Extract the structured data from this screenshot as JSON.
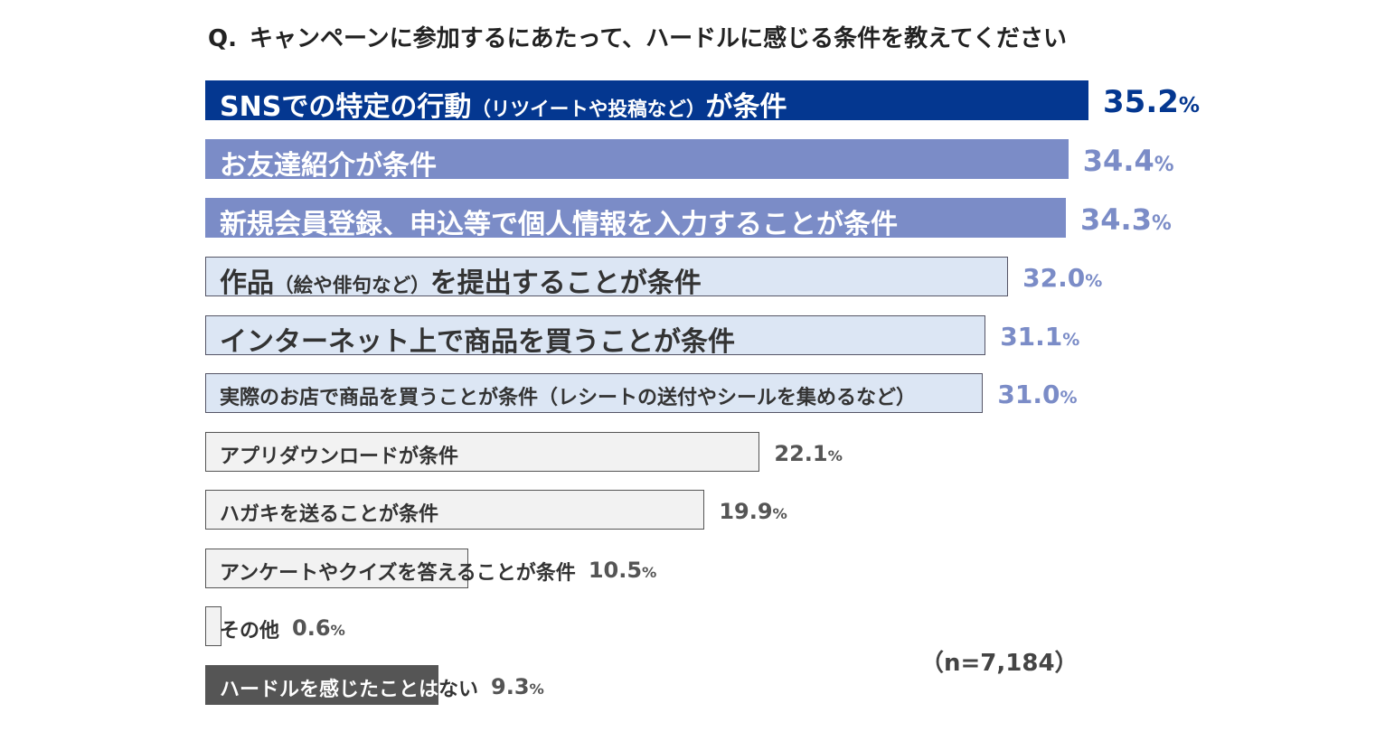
{
  "chart_data": {
    "type": "bar",
    "orientation": "horizontal",
    "title_prefix": "Q.",
    "title": "キャンペーンに参加するにあたって、ハードルに感じる条件を教えてください",
    "sample_note": "（n=7,184）",
    "unit": "%",
    "xlim": [
      0,
      35.2
    ],
    "categories": [
      {
        "main": "SNSでの特定の行動",
        "sub": "（リツイートや投稿など）",
        "suffix": "が条件"
      },
      {
        "main": "お友達紹介が条件",
        "sub": "",
        "suffix": ""
      },
      {
        "main": "新規会員登録、申込等で個人情報を入力することが条件",
        "sub": "",
        "suffix": ""
      },
      {
        "main": "作品",
        "sub": "（絵や俳句など）",
        "suffix": "を提出することが条件"
      },
      {
        "main": "インターネット上で商品を買うことが条件",
        "sub": "",
        "suffix": ""
      },
      {
        "main": "実際のお店で商品を買うことが条件（レシートの送付やシールを集めるなど）",
        "sub": "",
        "suffix": ""
      },
      {
        "main": "アプリダウンロードが条件",
        "sub": "",
        "suffix": ""
      },
      {
        "main": "ハガキを送ることが条件",
        "sub": "",
        "suffix": ""
      },
      {
        "main": "アンケートやクイズを答えることが条件",
        "sub": "",
        "suffix": ""
      },
      {
        "main": "その他",
        "sub": "",
        "suffix": ""
      },
      {
        "main": "ハードルを感じたことはない",
        "sub": "",
        "suffix": ""
      }
    ],
    "values": [
      35.2,
      34.4,
      34.3,
      32.0,
      31.1,
      31.0,
      22.1,
      19.9,
      10.5,
      0.6,
      9.3
    ],
    "value_labels": [
      "35.2",
      "34.4",
      "34.3",
      "32.0",
      "31.1",
      "31.0",
      "22.1",
      "19.9",
      "10.5",
      "0.6",
      "9.3"
    ],
    "colors": {
      "dark_blue": "#043790",
      "mid_blue": "#7b8cc7",
      "light_blue": "#dce6f4",
      "light_gray": "#f2f2f2",
      "dark_gray": "#555555",
      "text_dark": "#333333",
      "text_white": "#ffffff",
      "value_mid": "#7b8cc7",
      "value_gray": "#555555"
    }
  }
}
